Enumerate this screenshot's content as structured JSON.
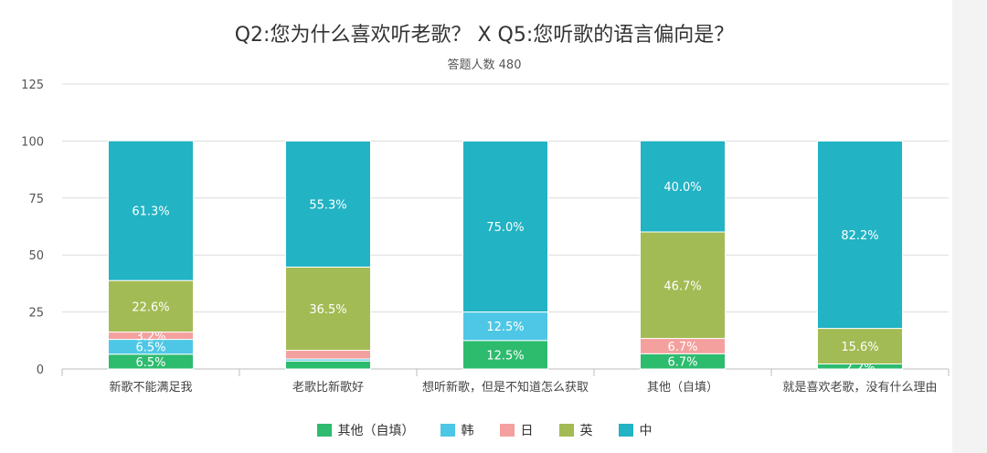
{
  "chart_data": {
    "type": "bar",
    "stacked": true,
    "title": "Q2:您为什么喜欢听老歌？ X Q5:您听歌的语言偏向是？",
    "subtitle": "答题人数 480",
    "categories": [
      "新歌不能满足我",
      "老歌比新歌好",
      "想听新歌，但是不知道怎么获取",
      "其他（自填）",
      "就是喜欢老歌，没有什么理由"
    ],
    "ylim": [
      0,
      125
    ],
    "yticks": [
      0,
      25,
      50,
      75,
      100,
      125
    ],
    "series": [
      {
        "name": "其他（自填）",
        "color": "#2dbb6e",
        "values": [
          6.5,
          3.5,
          12.5,
          6.7,
          2.2
        ],
        "labels": [
          "6.5%",
          "",
          "12.5%",
          "6.7%",
          "2.2%"
        ]
      },
      {
        "name": "韩",
        "color": "#4ec7e6",
        "values": [
          6.5,
          0.9,
          12.5,
          0,
          0
        ],
        "labels": [
          "6.5%",
          "",
          "12.5%",
          "",
          ""
        ]
      },
      {
        "name": "日",
        "color": "#f4a09e",
        "values": [
          3.2,
          3.8,
          0,
          6.7,
          0
        ],
        "labels": [
          "3.2%",
          "",
          "",
          "6.7%",
          ""
        ]
      },
      {
        "name": "英",
        "color": "#a3bb54",
        "values": [
          22.6,
          36.5,
          0,
          46.7,
          15.6
        ],
        "labels": [
          "22.6%",
          "36.5%",
          "",
          "46.7%",
          "15.6%"
        ]
      },
      {
        "name": "中",
        "color": "#22b3c4",
        "values": [
          61.3,
          55.3,
          75.0,
          40.0,
          82.2
        ],
        "labels": [
          "61.3%",
          "55.3%",
          "75.0%",
          "40.0%",
          "82.2%"
        ]
      }
    ],
    "grid": true,
    "legend_position": "bottom"
  }
}
